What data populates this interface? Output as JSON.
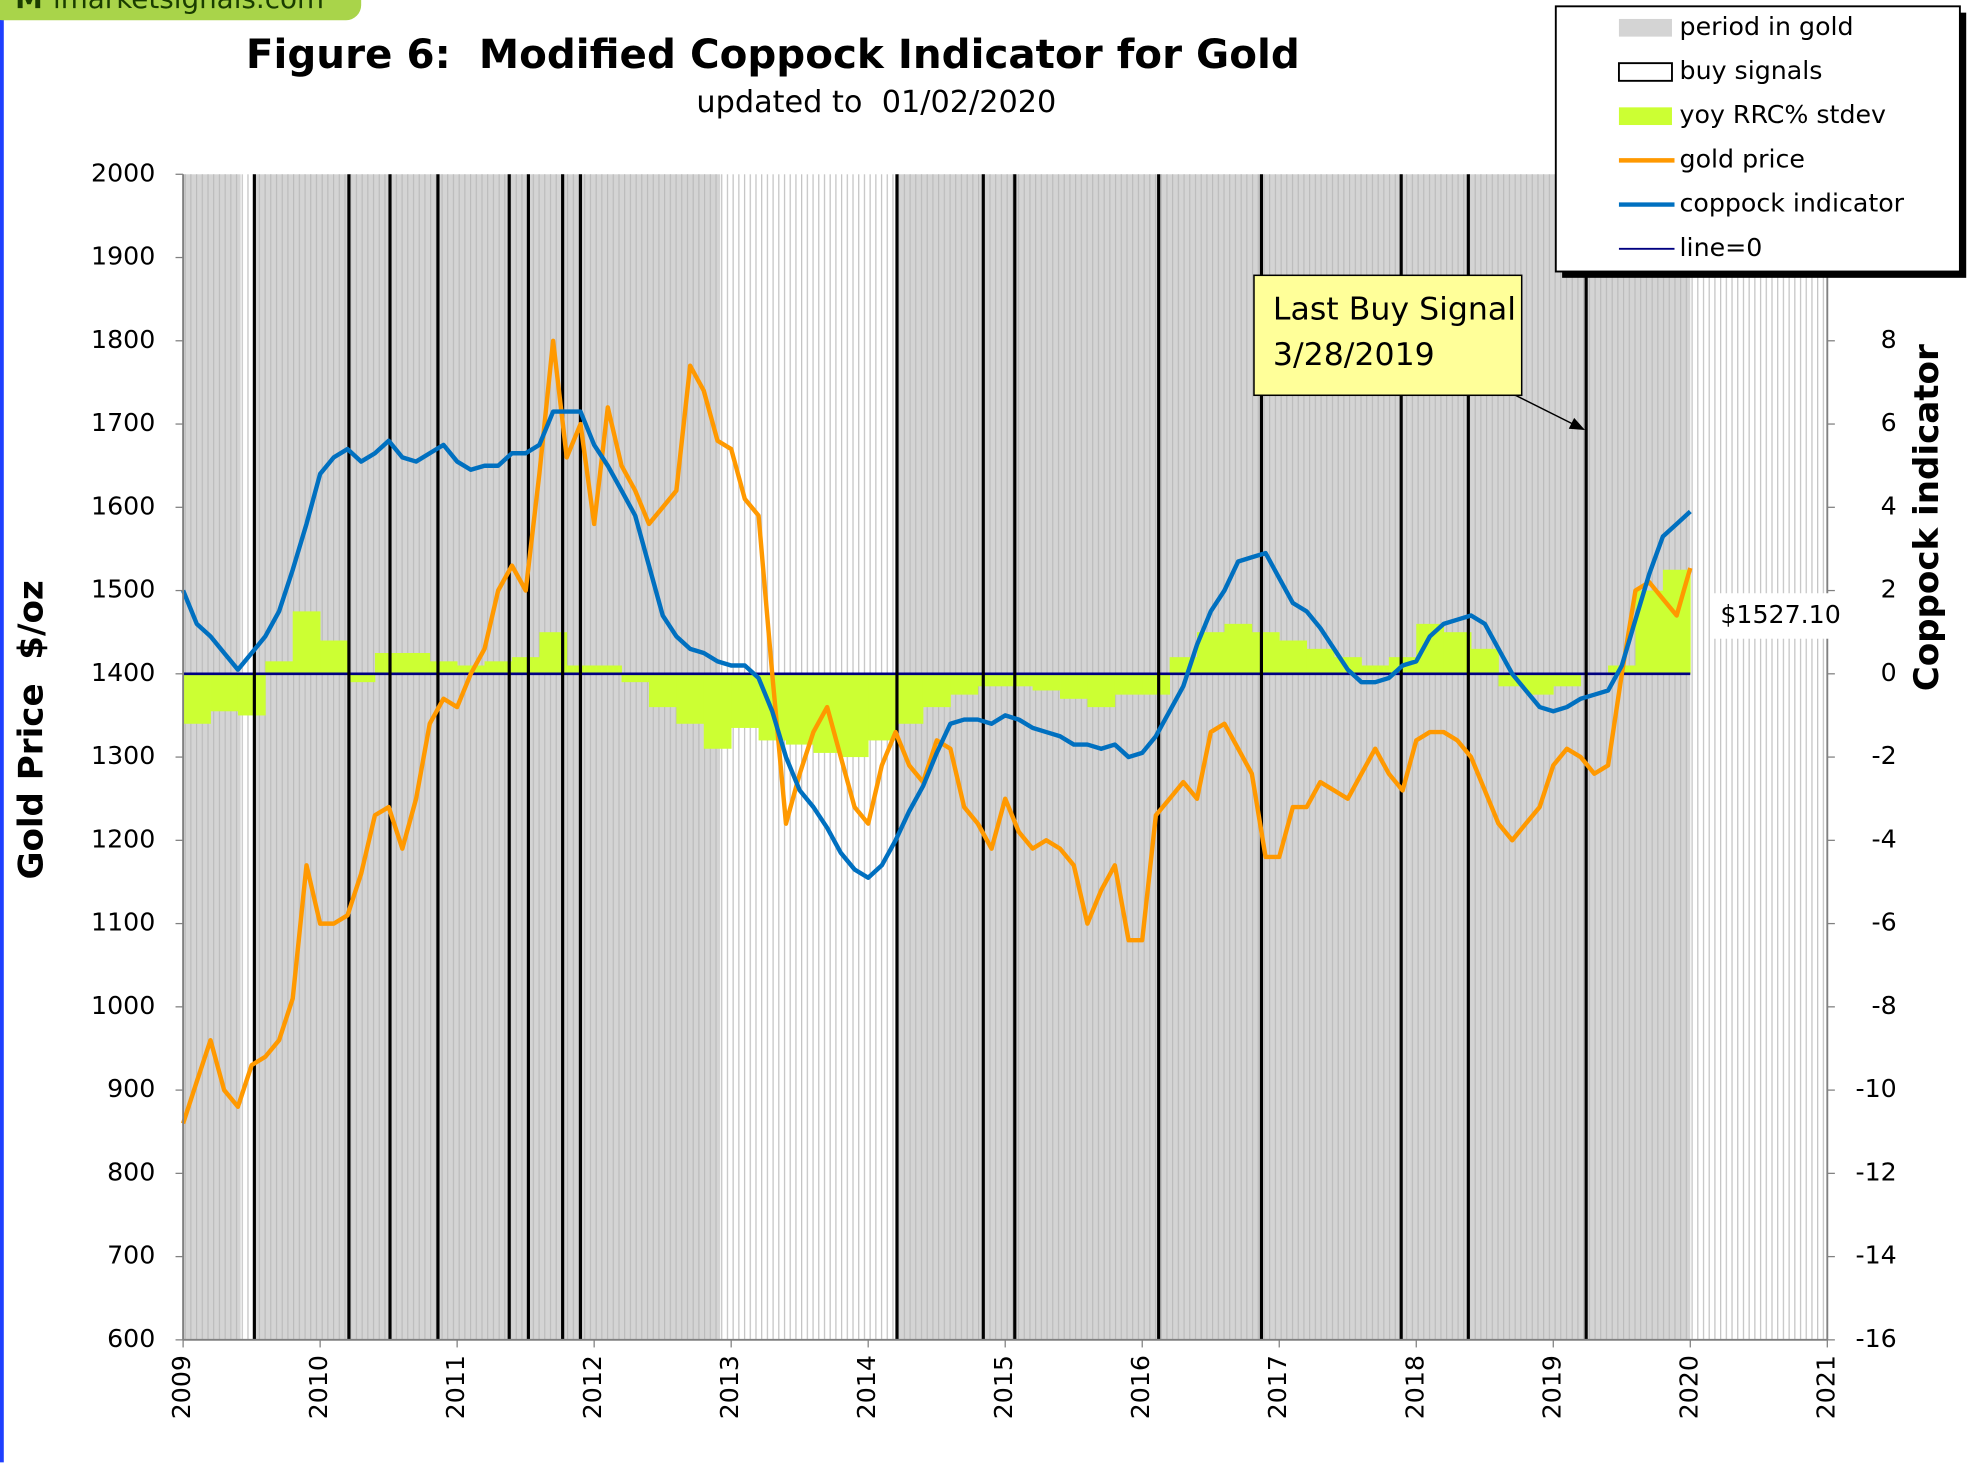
{
  "chart_data": {
    "type": "line",
    "logo": "imarketsignals.com",
    "title": "Figure 6:  Modified Coppock Indicator for Gold",
    "subtitle": "updated to  01/02/2020",
    "y_label": "Gold Price  $/oz",
    "y2_label": "Coppock indicator",
    "xlim": [
      2009,
      2021
    ],
    "xticks": [
      2009,
      2010,
      2011,
      2012,
      2013,
      2014,
      2015,
      2016,
      2017,
      2018,
      2019,
      2020,
      2021
    ],
    "ylim": [
      600,
      2000
    ],
    "yticks": [
      600,
      700,
      800,
      900,
      1000,
      1100,
      1200,
      1300,
      1400,
      1500,
      1600,
      1700,
      1800,
      1900,
      2000
    ],
    "y2lim": [
      -16,
      12
    ],
    "y2ticks": [
      -16,
      -14,
      -12,
      -10,
      -8,
      -6,
      -4,
      -2,
      0,
      2,
      4,
      6,
      8
    ],
    "legend": "upper right",
    "gold_periods": {
      "name": "period in gold",
      "color": "#d4d4d4",
      "ranges": [
        [
          2009,
          2009.42
        ],
        [
          2009.52,
          2012.92
        ],
        [
          2014.21,
          2020
        ]
      ]
    },
    "buy_signals": {
      "name": "buy signals",
      "color": "#000000",
      "x": [
        2009.52,
        2010.21,
        2010.51,
        2010.86,
        2011.38,
        2011.52,
        2011.77,
        2011.9,
        2014.21,
        2014.84,
        2015.07,
        2016.12,
        2016.87,
        2017.89,
        2018.38,
        2019.24
      ]
    },
    "x": [
      2009,
      2009.1,
      2009.2,
      2009.3,
      2009.4,
      2009.5,
      2009.6,
      2009.7,
      2009.8,
      2009.9,
      2010,
      2010.1,
      2010.2,
      2010.3,
      2010.4,
      2010.5,
      2010.6,
      2010.7,
      2010.8,
      2010.9,
      2011,
      2011.1,
      2011.2,
      2011.3,
      2011.4,
      2011.5,
      2011.6,
      2011.7,
      2011.8,
      2011.9,
      2012,
      2012.1,
      2012.2,
      2012.3,
      2012.4,
      2012.5,
      2012.6,
      2012.7,
      2012.8,
      2012.9,
      2013,
      2013.1,
      2013.2,
      2013.3,
      2013.4,
      2013.5,
      2013.6,
      2013.7,
      2013.8,
      2013.9,
      2014,
      2014.1,
      2014.2,
      2014.3,
      2014.4,
      2014.5,
      2014.6,
      2014.7,
      2014.8,
      2014.9,
      2015,
      2015.1,
      2015.2,
      2015.3,
      2015.4,
      2015.5,
      2015.6,
      2015.7,
      2015.8,
      2015.9,
      2016,
      2016.1,
      2016.2,
      2016.3,
      2016.4,
      2016.5,
      2016.6,
      2016.7,
      2016.8,
      2016.9,
      2017,
      2017.1,
      2017.2,
      2017.3,
      2017.4,
      2017.5,
      2017.6,
      2017.7,
      2017.8,
      2017.9,
      2018,
      2018.1,
      2018.2,
      2018.3,
      2018.4,
      2018.5,
      2018.6,
      2018.7,
      2018.8,
      2018.9,
      2019,
      2019.1,
      2019.2,
      2019.3,
      2019.4,
      2019.5,
      2019.6,
      2019.7,
      2019.8,
      2019.9,
      2020
    ],
    "series": [
      {
        "name": "yoy RRC% stdev",
        "color": "#ccff33",
        "axis": "y2",
        "kind": "bars",
        "x": [
          2009,
          2009.2,
          2009.4,
          2009.6,
          2009.8,
          2010,
          2010.2,
          2010.4,
          2010.6,
          2010.8,
          2011,
          2011.2,
          2011.4,
          2011.6,
          2011.8,
          2012,
          2012.2,
          2012.4,
          2012.6,
          2012.8,
          2013,
          2013.2,
          2013.4,
          2013.6,
          2013.8,
          2014,
          2014.2,
          2014.4,
          2014.6,
          2014.8,
          2015,
          2015.2,
          2015.4,
          2015.6,
          2015.8,
          2016,
          2016.2,
          2016.4,
          2016.6,
          2016.8,
          2017,
          2017.2,
          2017.4,
          2017.6,
          2017.8,
          2018,
          2018.2,
          2018.4,
          2018.6,
          2018.8,
          2019,
          2019.2,
          2019.4,
          2019.6,
          2019.8
        ],
        "values": [
          -1.2,
          -0.9,
          -1.0,
          0.3,
          1.5,
          0.8,
          -0.2,
          0.5,
          0.5,
          0.3,
          0.2,
          0.3,
          0.4,
          1.0,
          0.2,
          0.2,
          -0.2,
          -0.8,
          -1.2,
          -1.8,
          -1.3,
          -1.6,
          -1.7,
          -1.9,
          -2.0,
          -1.6,
          -1.2,
          -0.8,
          -0.5,
          -0.3,
          -0.3,
          -0.4,
          -0.6,
          -0.8,
          -0.5,
          -0.5,
          0.4,
          1.0,
          1.2,
          1.0,
          0.8,
          0.6,
          0.4,
          0.2,
          0.4,
          1.2,
          1.0,
          0.6,
          -0.3,
          -0.5,
          -0.3,
          0.0,
          0.2,
          2.0,
          2.5
        ]
      },
      {
        "name": "gold price",
        "color": "#ff9900",
        "axis": "y",
        "kind": "line",
        "values": [
          860,
          910,
          960,
          900,
          880,
          930,
          940,
          960,
          1010,
          1170,
          1100,
          1100,
          1110,
          1160,
          1230,
          1240,
          1190,
          1250,
          1340,
          1370,
          1360,
          1400,
          1430,
          1500,
          1530,
          1500,
          1640,
          1800,
          1660,
          1700,
          1580,
          1720,
          1650,
          1620,
          1580,
          1600,
          1620,
          1770,
          1740,
          1680,
          1670,
          1610,
          1590,
          1400,
          1220,
          1280,
          1330,
          1360,
          1300,
          1240,
          1220,
          1290,
          1330,
          1290,
          1270,
          1320,
          1310,
          1240,
          1220,
          1190,
          1250,
          1210,
          1190,
          1200,
          1190,
          1170,
          1100,
          1140,
          1170,
          1080,
          1080,
          1230,
          1250,
          1270,
          1250,
          1330,
          1340,
          1310,
          1280,
          1180,
          1180,
          1240,
          1240,
          1270,
          1260,
          1250,
          1280,
          1310,
          1280,
          1260,
          1320,
          1330,
          1330,
          1320,
          1300,
          1260,
          1220,
          1200,
          1220,
          1240,
          1290,
          1310,
          1300,
          1280,
          1290,
          1400,
          1500,
          1510,
          1490,
          1470,
          1527.1
        ]
      },
      {
        "name": "coppock indicator",
        "color": "#0070c0",
        "axis": "y2",
        "kind": "line",
        "values": [
          2,
          1.2,
          0.9,
          0.5,
          0.1,
          0.5,
          0.9,
          1.5,
          2.5,
          3.6,
          4.8,
          5.2,
          5.4,
          5.1,
          5.3,
          5.6,
          5.2,
          5.1,
          5.3,
          5.5,
          5.1,
          4.9,
          5.0,
          5.0,
          5.3,
          5.3,
          5.5,
          6.3,
          6.3,
          6.3,
          5.5,
          5.0,
          4.4,
          3.8,
          2.6,
          1.4,
          0.9,
          0.6,
          0.5,
          0.3,
          0.2,
          0.2,
          -0.1,
          -0.9,
          -2.0,
          -2.8,
          -3.2,
          -3.7,
          -4.3,
          -4.7,
          -4.9,
          -4.6,
          -4.0,
          -3.3,
          -2.7,
          -1.9,
          -1.2,
          -1.1,
          -1.1,
          -1.2,
          -1.0,
          -1.1,
          -1.3,
          -1.4,
          -1.5,
          -1.7,
          -1.7,
          -1.8,
          -1.7,
          -2.0,
          -1.9,
          -1.5,
          -0.9,
          -0.3,
          0.7,
          1.5,
          2.0,
          2.7,
          2.8,
          2.9,
          2.3,
          1.7,
          1.5,
          1.1,
          0.6,
          0.1,
          -0.2,
          -0.2,
          -0.1,
          0.2,
          0.3,
          0.9,
          1.2,
          1.3,
          1.4,
          1.2,
          0.6,
          0.0,
          -0.4,
          -0.8,
          -0.9,
          -0.8,
          -0.6,
          -0.5,
          -0.4,
          0.2,
          1.3,
          2.4,
          3.3,
          3.6,
          3.9
        ]
      },
      {
        "name": "line=0",
        "color": "#000080",
        "axis": "y2",
        "kind": "level",
        "level": 0
      }
    ],
    "price_label": {
      "value": 1527.1,
      "label": "$1527.10"
    },
    "annotation": {
      "lines": [
        "Last Buy Signal",
        "3/28/2019"
      ]
    }
  }
}
